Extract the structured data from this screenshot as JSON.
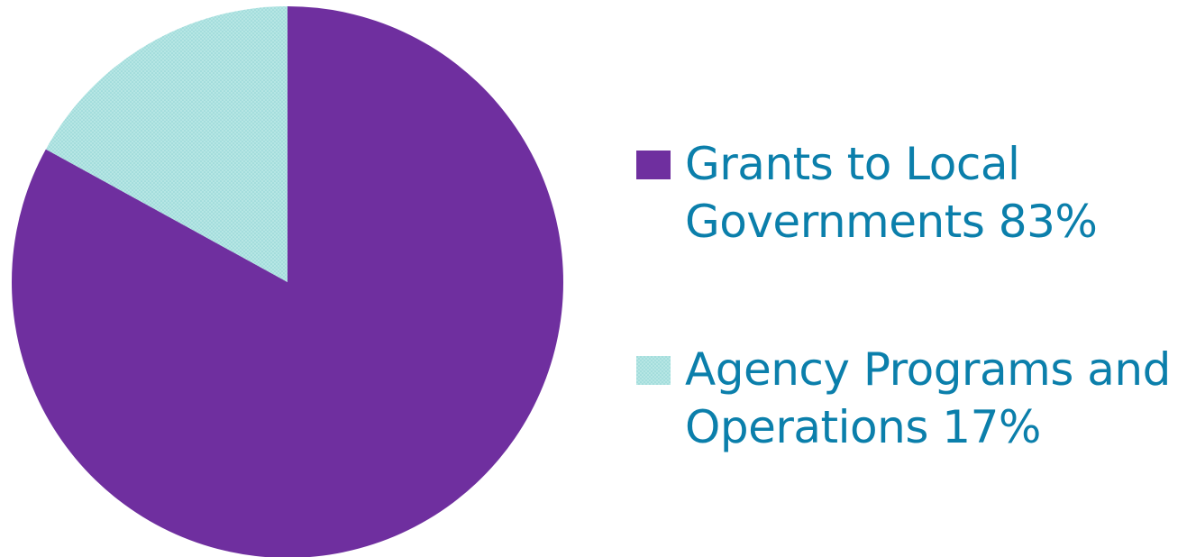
{
  "chart_data": {
    "type": "pie",
    "title": "",
    "slices": [
      {
        "label_lines": [
          "Grants to Local",
          "Governments  83%"
        ],
        "value": 83,
        "color": "#6f2f9f",
        "pattern": "solid"
      },
      {
        "label_lines": [
          "Agency Programs and",
          "Operations 17%"
        ],
        "value": 17,
        "color": "#b6e6e4",
        "pattern": "dotted"
      }
    ],
    "legend_position": "right"
  },
  "colors": {
    "legend_text": "#0b7fab"
  }
}
